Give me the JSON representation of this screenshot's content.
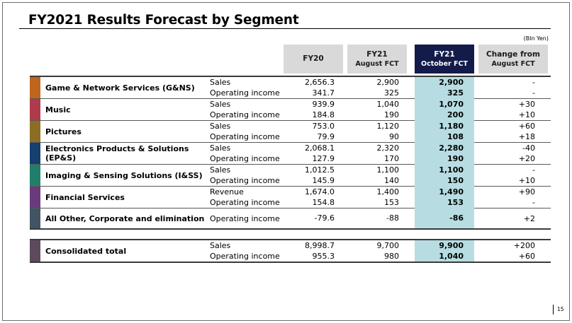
{
  "title": "FY2021 Results Forecast by Segment",
  "unit": "(Bln Yen)",
  "columns": [
    {
      "line1": "FY20",
      "line2": ""
    },
    {
      "line1": "FY21",
      "line2": "August FCT"
    },
    {
      "line1": "FY21",
      "line2": "October FCT"
    },
    {
      "line1": "Change from",
      "line2": "August FCT"
    }
  ],
  "segments": [
    {
      "name": "Game & Network Services (G&NS)",
      "color": "#c0651b",
      "rows": [
        {
          "metric": "Sales",
          "fy20": "2,656.3",
          "aug": "2,900",
          "oct": "2,900",
          "chg": "-"
        },
        {
          "metric": "Operating income",
          "fy20": "341.7",
          "aug": "325",
          "oct": "325",
          "chg": "-"
        }
      ]
    },
    {
      "name": "Music",
      "color": "#b03a4b",
      "rows": [
        {
          "metric": "Sales",
          "fy20": "939.9",
          "aug": "1,040",
          "oct": "1,070",
          "chg": "+30"
        },
        {
          "metric": "Operating income",
          "fy20": "184.8",
          "aug": "190",
          "oct": "200",
          "chg": "+10"
        }
      ]
    },
    {
      "name": "Pictures",
      "color": "#8c6d24",
      "rows": [
        {
          "metric": "Sales",
          "fy20": "753.0",
          "aug": "1,120",
          "oct": "1,180",
          "chg": "+60"
        },
        {
          "metric": "Operating income",
          "fy20": "79.9",
          "aug": "90",
          "oct": "108",
          "chg": "+18"
        }
      ]
    },
    {
      "name": "Electronics Products & Solutions (EP&S)",
      "color": "#143f6f",
      "rows": [
        {
          "metric": "Sales",
          "fy20": "2,068.1",
          "aug": "2,320",
          "oct": "2,280",
          "chg": "-40"
        },
        {
          "metric": "Operating income",
          "fy20": "127.9",
          "aug": "170",
          "oct": "190",
          "chg": "+20"
        }
      ]
    },
    {
      "name": "Imaging & Sensing Solutions (I&SS)",
      "color": "#1f7f6b",
      "rows": [
        {
          "metric": "Sales",
          "fy20": "1,012.5",
          "aug": "1,100",
          "oct": "1,100",
          "chg": "-"
        },
        {
          "metric": "Operating income",
          "fy20": "145.9",
          "aug": "140",
          "oct": "150",
          "chg": "+10"
        }
      ]
    },
    {
      "name": "Financial Services",
      "color": "#6a3a7d",
      "rows": [
        {
          "metric": "Revenue",
          "fy20": "1,674.0",
          "aug": "1,400",
          "oct": "1,490",
          "chg": "+90"
        },
        {
          "metric": "Operating income",
          "fy20": "154.8",
          "aug": "153",
          "oct": "153",
          "chg": "-"
        }
      ]
    },
    {
      "name": "All Other, Corporate and elimination",
      "color": "#405463",
      "rows": [
        {
          "metric": "Operating income",
          "fy20": "-79.6",
          "aug": "-88",
          "oct": "-86",
          "chg": "+2"
        }
      ]
    }
  ],
  "consolidated": {
    "name": "Consolidated total",
    "color": "#5e4a5c",
    "rows": [
      {
        "metric": "Sales",
        "fy20": "8,998.7",
        "aug": "9,700",
        "oct": "9,900",
        "chg": "+200"
      },
      {
        "metric": "Operating income",
        "fy20": "955.3",
        "aug": "980",
        "oct": "1,040",
        "chg": "+60"
      }
    ]
  },
  "page_number": "15"
}
